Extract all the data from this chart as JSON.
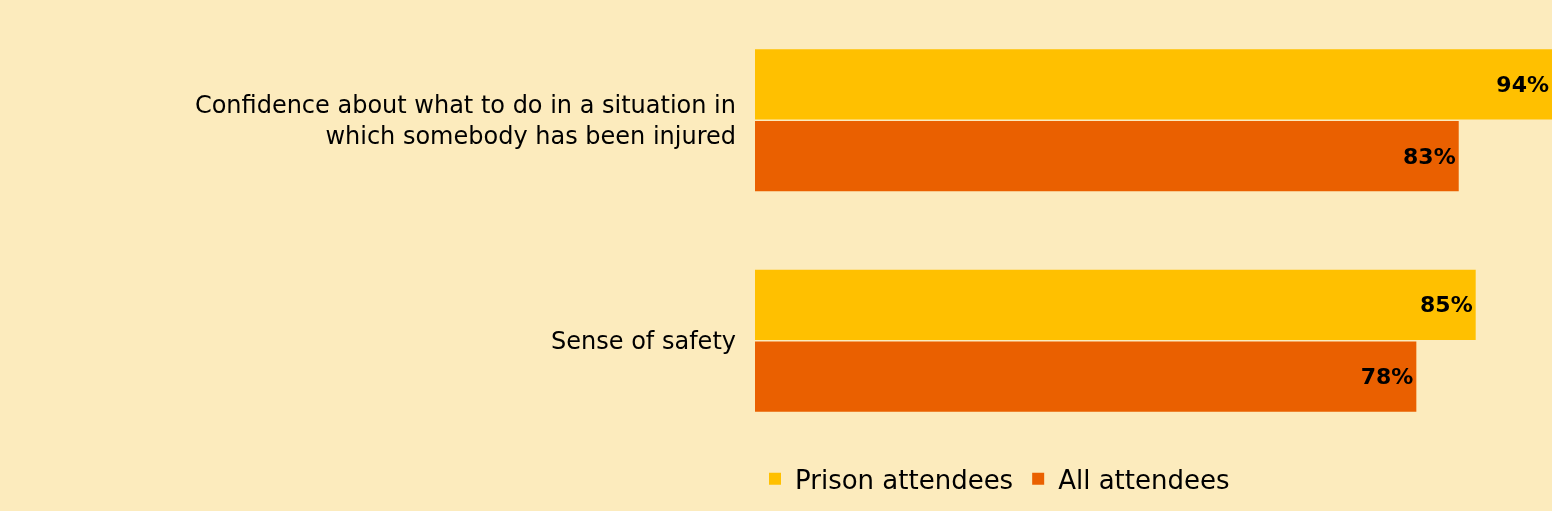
{
  "chart_data": {
    "type": "bar",
    "orientation": "horizontal",
    "categories": [
      "Confidence about what to do in a situation in which somebody has been injured",
      "Sense of safety"
    ],
    "series": [
      {
        "name": "Prison attendees",
        "color": "#ffc000",
        "values": [
          94,
          85
        ],
        "value_labels": [
          "94%",
          "85%"
        ]
      },
      {
        "name": "All attendees",
        "color": "#ea6000",
        "values": [
          83,
          78
        ],
        "value_labels": [
          "83%",
          "78%"
        ]
      }
    ],
    "xlim": [
      0,
      94
    ],
    "grid": false,
    "legend": "bottom left"
  }
}
